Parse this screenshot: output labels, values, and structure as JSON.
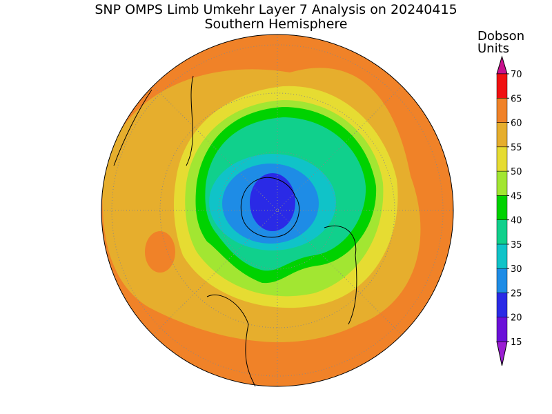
{
  "header": {
    "title": "SNP OMPS Limb Umkehr Layer 7 Analysis on 20240415",
    "subtitle": "Southern Hemisphere"
  },
  "colorbar": {
    "title": [
      "Dobson",
      "Units"
    ],
    "ticks": [
      15,
      20,
      25,
      30,
      35,
      40,
      45,
      50,
      55,
      60,
      65,
      70
    ],
    "colors": [
      "#9a1ed2",
      "#6a10d8",
      "#2a2ae6",
      "#1e8ce6",
      "#10c3c8",
      "#10d08c",
      "#00d200",
      "#a2e632",
      "#e6dc32",
      "#e6ae2d",
      "#f08228",
      "#f01010",
      "#c8108c"
    ]
  }
}
